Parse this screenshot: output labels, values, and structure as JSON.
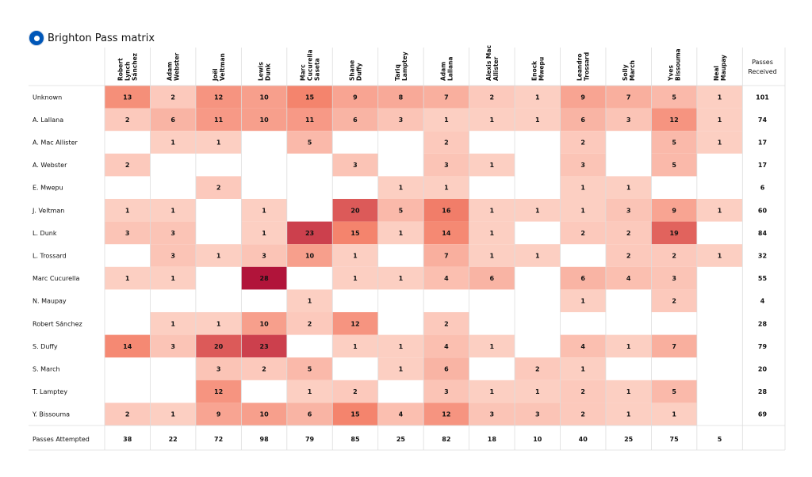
{
  "title": "Brighton Pass matrix",
  "chart_data": {
    "type": "heatmap",
    "title": "Brighton Pass matrix",
    "columns": [
      "Robert Lynch Sánchez",
      "Adam Webster",
      "Joël Veltman",
      "Lewis Dunk",
      "Marc Cucurella Saseta",
      "Shane Duffy",
      "Tariq Lamptey",
      "Adam Lallana",
      "Alexis Mac Allister",
      "Enock Mwepu",
      "Leandro Trossard",
      "Solly March",
      "Yves Bissouma",
      "Neal Maupay"
    ],
    "column_header_lines": [
      [
        "Robert",
        "Lynch",
        "Sánchez"
      ],
      [
        "Adam",
        "Webster"
      ],
      [
        "Joël",
        "Veltman"
      ],
      [
        "Lewis",
        "Dunk"
      ],
      [
        "Marc",
        "Cucurella",
        "Saseta"
      ],
      [
        "Shane",
        "Duffy"
      ],
      [
        "Tariq",
        "Lamptey"
      ],
      [
        "Adam",
        "Lallana"
      ],
      [
        "Alexis Mac",
        "Allister"
      ],
      [
        "Enock",
        "Mwepu"
      ],
      [
        "Leandro",
        "Trossard"
      ],
      [
        "Solly",
        "March"
      ],
      [
        "Yves",
        "Bissouma"
      ],
      [
        "Neal",
        "Maupay"
      ]
    ],
    "rows": [
      "Unknown",
      "A. Lallana",
      "A. Mac Allister",
      "A. Webster",
      "E. Mwepu",
      "J. Veltman",
      "L. Dunk",
      "L. Trossard",
      "Marc Cucurella",
      "N. Maupay",
      "Robert Sánchez",
      "S. Duffy",
      "S. March",
      "T. Lamptey",
      "Y. Bissouma"
    ],
    "values": [
      [
        13,
        2,
        12,
        10,
        15,
        9,
        8,
        7,
        2,
        1,
        9,
        7,
        5,
        1
      ],
      [
        2,
        6,
        11,
        10,
        11,
        6,
        3,
        1,
        1,
        1,
        6,
        3,
        12,
        1
      ],
      [
        null,
        1,
        1,
        null,
        5,
        null,
        null,
        2,
        null,
        null,
        2,
        null,
        5,
        1
      ],
      [
        2,
        null,
        null,
        null,
        null,
        3,
        null,
        3,
        1,
        null,
        3,
        null,
        5,
        null
      ],
      [
        null,
        null,
        2,
        null,
        null,
        null,
        1,
        1,
        null,
        null,
        1,
        1,
        null,
        null
      ],
      [
        1,
        1,
        null,
        1,
        null,
        20,
        5,
        16,
        1,
        1,
        1,
        3,
        9,
        1
      ],
      [
        3,
        3,
        null,
        1,
        23,
        15,
        1,
        14,
        1,
        null,
        2,
        2,
        19,
        null
      ],
      [
        null,
        3,
        1,
        3,
        10,
        1,
        null,
        7,
        1,
        1,
        null,
        2,
        2,
        1
      ],
      [
        1,
        1,
        null,
        28,
        null,
        1,
        1,
        4,
        6,
        null,
        6,
        4,
        3,
        null
      ],
      [
        null,
        null,
        null,
        null,
        1,
        null,
        null,
        null,
        null,
        null,
        1,
        null,
        2,
        null
      ],
      [
        null,
        1,
        1,
        10,
        2,
        12,
        null,
        2,
        null,
        null,
        null,
        null,
        null,
        null
      ],
      [
        14,
        3,
        20,
        23,
        null,
        1,
        1,
        4,
        1,
        null,
        4,
        1,
        7,
        null
      ],
      [
        null,
        null,
        3,
        2,
        5,
        null,
        1,
        6,
        null,
        2,
        1,
        null,
        null,
        null
      ],
      [
        null,
        null,
        12,
        null,
        1,
        2,
        null,
        3,
        1,
        1,
        2,
        1,
        5,
        null
      ],
      [
        2,
        1,
        9,
        10,
        6,
        15,
        4,
        12,
        3,
        3,
        2,
        1,
        1,
        null
      ]
    ],
    "passes_received_label": [
      "Passes",
      "Received"
    ],
    "passes_received": [
      101,
      74,
      17,
      17,
      6,
      60,
      84,
      32,
      55,
      4,
      28,
      79,
      20,
      28,
      69
    ],
    "passes_attempted_label": "Passes Attempted",
    "passes_attempted": [
      38,
      22,
      72,
      98,
      79,
      85,
      25,
      82,
      18,
      10,
      40,
      25,
      75,
      5
    ],
    "color_scale": {
      "low": "#fdd4c8",
      "mid": "#f4826b",
      "high": "#b1143a",
      "max_value": 28
    }
  }
}
